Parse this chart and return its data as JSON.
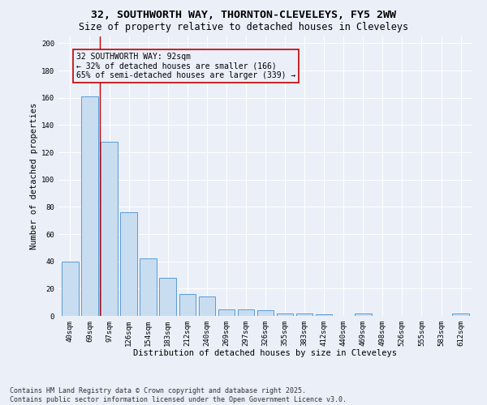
{
  "title_line1": "32, SOUTHWORTH WAY, THORNTON-CLEVELEYS, FY5 2WW",
  "title_line2": "Size of property relative to detached houses in Cleveleys",
  "xlabel": "Distribution of detached houses by size in Cleveleys",
  "ylabel": "Number of detached properties",
  "categories": [
    "40sqm",
    "69sqm",
    "97sqm",
    "126sqm",
    "154sqm",
    "183sqm",
    "212sqm",
    "240sqm",
    "269sqm",
    "297sqm",
    "326sqm",
    "355sqm",
    "383sqm",
    "412sqm",
    "440sqm",
    "469sqm",
    "498sqm",
    "526sqm",
    "555sqm",
    "583sqm",
    "612sqm"
  ],
  "values": [
    40,
    161,
    128,
    76,
    42,
    28,
    16,
    14,
    5,
    5,
    4,
    2,
    2,
    1,
    0,
    2,
    0,
    0,
    0,
    0,
    2
  ],
  "bar_color": "#c9ddf0",
  "bar_edge_color": "#5b9bd5",
  "vline_color": "#c00000",
  "annotation_box_text": "32 SOUTHWORTH WAY: 92sqm\n← 32% of detached houses are smaller (166)\n65% of semi-detached houses are larger (339) →",
  "box_edge_color": "#c00000",
  "ylim": [
    0,
    205
  ],
  "yticks": [
    0,
    20,
    40,
    60,
    80,
    100,
    120,
    140,
    160,
    180,
    200
  ],
  "background_color": "#eaeff8",
  "grid_color": "#ffffff",
  "footnote": "Contains HM Land Registry data © Crown copyright and database right 2025.\nContains public sector information licensed under the Open Government Licence v3.0.",
  "title_fontsize": 9.5,
  "subtitle_fontsize": 8.5,
  "axis_label_fontsize": 7.5,
  "tick_fontsize": 6.5,
  "annotation_fontsize": 7.0,
  "footnote_fontsize": 6.0
}
